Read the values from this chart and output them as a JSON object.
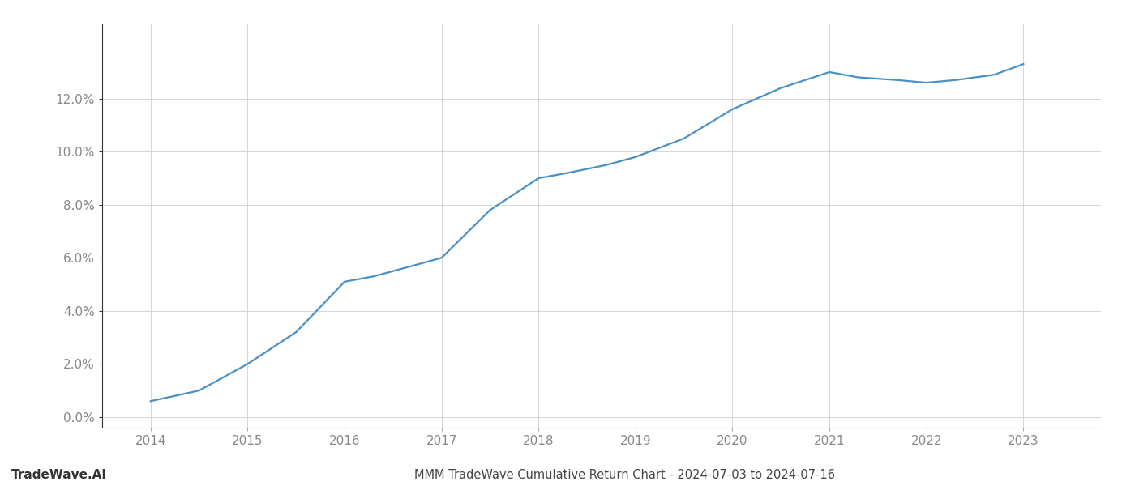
{
  "x_values": [
    2014,
    2014.5,
    2015,
    2015.5,
    2016,
    2016.3,
    2016.7,
    2017,
    2017.5,
    2018,
    2018.3,
    2018.7,
    2019,
    2019.5,
    2020,
    2020.5,
    2021,
    2021.3,
    2021.7,
    2022,
    2022.3,
    2022.7,
    2023
  ],
  "y_values": [
    0.006,
    0.01,
    0.02,
    0.032,
    0.051,
    0.053,
    0.057,
    0.06,
    0.078,
    0.09,
    0.092,
    0.095,
    0.098,
    0.105,
    0.116,
    0.124,
    0.13,
    0.128,
    0.127,
    0.126,
    0.127,
    0.129,
    0.133
  ],
  "line_color": "#4a90c4",
  "line_width": 1.6,
  "background_color": "#ffffff",
  "grid_color": "#d0d0d0",
  "title": "MMM TradeWave Cumulative Return Chart - 2024-07-03 to 2024-07-16",
  "watermark": "TradeWave.AI",
  "xlim": [
    2013.5,
    2023.8
  ],
  "ylim": [
    -0.004,
    0.148
  ],
  "yticks": [
    0.0,
    0.02,
    0.04,
    0.06,
    0.08,
    0.1,
    0.12
  ],
  "xticks": [
    2014,
    2015,
    2016,
    2017,
    2018,
    2019,
    2020,
    2021,
    2022,
    2023
  ],
  "tick_label_color": "#888888",
  "title_color": "#444444",
  "title_fontsize": 10.5,
  "watermark_fontsize": 11,
  "axis_line_color": "#aaaaaa",
  "left_spine_color": "#333333"
}
